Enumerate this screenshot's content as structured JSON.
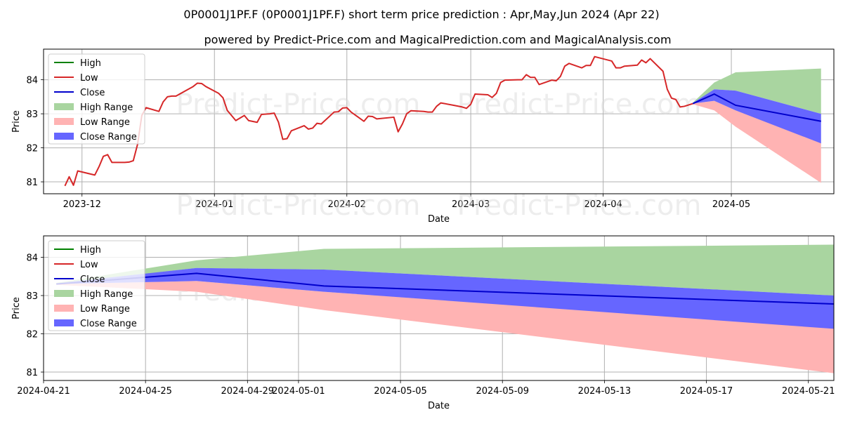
{
  "header": {
    "title": "0P0001J1PF.F (0P0001J1PF.F) short term price prediction : Apr,May,Jun 2024 (Apr 22)",
    "subtitle": "powered by Predict-Price.com and MagicalPrediction.com and MagicalAnalysis.com"
  },
  "watermark": "Predict-Price.com",
  "colors": {
    "high": "#008000",
    "low": "#d62728",
    "close": "#0000cc",
    "high_range": "#a9d5a0",
    "low_range": "#ffb3b3",
    "close_range": "#6666ff"
  },
  "chart_data": [
    {
      "type": "line",
      "xlabel": "Date",
      "ylabel": "Price",
      "xlim": [
        "2023-11-22",
        "2024-05-25"
      ],
      "ylim": [
        80.65,
        84.9
      ],
      "x_ticks": [
        "2023-12",
        "2024-01",
        "2024-02",
        "2024-03",
        "2024-04",
        "2024-05"
      ],
      "x_tick_dates": [
        "2023-12-01",
        "2024-01-01",
        "2024-02-01",
        "2024-03-01",
        "2024-04-01",
        "2024-05-01"
      ],
      "y_ticks": [
        81,
        82,
        83,
        84
      ],
      "grid": true,
      "legend_position": "top-left",
      "legend": [
        "High",
        "Low",
        "Close",
        "High Range",
        "Low Range",
        "Close Range"
      ],
      "history": {
        "name": "Low",
        "points": [
          [
            "2023-11-27",
            80.88
          ],
          [
            "2023-11-28",
            81.15
          ],
          [
            "2023-11-29",
            80.9
          ],
          [
            "2023-11-30",
            81.32
          ],
          [
            "2023-12-04",
            81.2
          ],
          [
            "2023-12-05",
            81.45
          ],
          [
            "2023-12-06",
            81.75
          ],
          [
            "2023-12-07",
            81.8
          ],
          [
            "2023-12-08",
            81.57
          ],
          [
            "2023-12-11",
            81.57
          ],
          [
            "2023-12-12",
            81.58
          ],
          [
            "2023-12-13",
            81.62
          ],
          [
            "2023-12-14",
            82.1
          ],
          [
            "2023-12-15",
            82.95
          ],
          [
            "2023-12-16",
            83.18
          ],
          [
            "2023-12-19",
            83.07
          ],
          [
            "2023-12-20",
            83.35
          ],
          [
            "2023-12-21",
            83.5
          ],
          [
            "2023-12-22",
            83.52
          ],
          [
            "2023-12-23",
            83.52
          ],
          [
            "2023-12-27",
            83.8
          ],
          [
            "2023-12-28",
            83.9
          ],
          [
            "2023-12-29",
            83.89
          ],
          [
            "2023-12-30",
            83.8
          ],
          [
            "2024-01-02",
            83.6
          ],
          [
            "2024-01-03",
            83.47
          ],
          [
            "2024-01-04",
            83.1
          ],
          [
            "2024-01-06",
            82.8
          ],
          [
            "2024-01-08",
            82.95
          ],
          [
            "2024-01-09",
            82.8
          ],
          [
            "2024-01-11",
            82.75
          ],
          [
            "2024-01-12",
            82.98
          ],
          [
            "2024-01-14",
            83.0
          ],
          [
            "2024-01-15",
            83.02
          ],
          [
            "2024-01-16",
            82.75
          ],
          [
            "2024-01-17",
            82.25
          ],
          [
            "2024-01-18",
            82.27
          ],
          [
            "2024-01-19",
            82.5
          ],
          [
            "2024-01-22",
            82.65
          ],
          [
            "2024-01-23",
            82.55
          ],
          [
            "2024-01-24",
            82.58
          ],
          [
            "2024-01-25",
            82.72
          ],
          [
            "2024-01-26",
            82.7
          ],
          [
            "2024-01-29",
            83.05
          ],
          [
            "2024-01-30",
            83.06
          ],
          [
            "2024-01-31",
            83.17
          ],
          [
            "2024-02-01",
            83.18
          ],
          [
            "2024-02-02",
            83.05
          ],
          [
            "2024-02-05",
            82.78
          ],
          [
            "2024-02-06",
            82.93
          ],
          [
            "2024-02-07",
            82.92
          ],
          [
            "2024-02-08",
            82.85
          ],
          [
            "2024-02-12",
            82.9
          ],
          [
            "2024-02-13",
            82.47
          ],
          [
            "2024-02-14",
            82.7
          ],
          [
            "2024-02-15",
            83.0
          ],
          [
            "2024-02-16",
            83.09
          ],
          [
            "2024-02-19",
            83.07
          ],
          [
            "2024-02-20",
            83.05
          ],
          [
            "2024-02-21",
            83.05
          ],
          [
            "2024-02-22",
            83.22
          ],
          [
            "2024-02-23",
            83.32
          ],
          [
            "2024-02-26",
            83.25
          ],
          [
            "2024-02-28",
            83.2
          ],
          [
            "2024-02-29",
            83.16
          ],
          [
            "2024-03-01",
            83.28
          ],
          [
            "2024-03-02",
            83.58
          ],
          [
            "2024-03-05",
            83.56
          ],
          [
            "2024-03-06",
            83.48
          ],
          [
            "2024-03-07",
            83.6
          ],
          [
            "2024-03-08",
            83.92
          ],
          [
            "2024-03-09",
            83.99
          ],
          [
            "2024-03-12",
            84.0
          ],
          [
            "2024-03-13",
            84.0
          ],
          [
            "2024-03-14",
            84.15
          ],
          [
            "2024-03-15",
            84.07
          ],
          [
            "2024-03-16",
            84.07
          ],
          [
            "2024-03-17",
            83.86
          ],
          [
            "2024-03-20",
            83.99
          ],
          [
            "2024-03-21",
            83.97
          ],
          [
            "2024-03-22",
            84.1
          ],
          [
            "2024-03-23",
            84.4
          ],
          [
            "2024-03-24",
            84.48
          ],
          [
            "2024-03-27",
            84.35
          ],
          [
            "2024-03-28",
            84.42
          ],
          [
            "2024-03-29",
            84.42
          ],
          [
            "2024-03-30",
            84.68
          ],
          [
            "2024-04-03",
            84.55
          ],
          [
            "2024-04-04",
            84.35
          ],
          [
            "2024-04-05",
            84.35
          ],
          [
            "2024-04-06",
            84.4
          ],
          [
            "2024-04-09",
            84.43
          ],
          [
            "2024-04-10",
            84.58
          ],
          [
            "2024-04-11",
            84.5
          ],
          [
            "2024-04-12",
            84.62
          ],
          [
            "2024-04-15",
            84.25
          ],
          [
            "2024-04-16",
            83.72
          ],
          [
            "2024-04-17",
            83.46
          ],
          [
            "2024-04-18",
            83.42
          ],
          [
            "2024-04-19",
            83.2
          ],
          [
            "2024-04-20",
            83.22
          ],
          [
            "2024-04-22",
            83.3
          ]
        ]
      },
      "forecast_dates": [
        "2024-04-22",
        "2024-04-27",
        "2024-05-02",
        "2024-05-22"
      ],
      "high_range": {
        "upper": [
          83.33,
          83.92,
          84.22,
          84.33
        ],
        "lower": [
          83.3,
          83.72,
          83.68,
          83.0
        ]
      },
      "low_range": {
        "upper": [
          83.3,
          83.38,
          83.1,
          82.15
        ],
        "lower": [
          83.28,
          83.1,
          82.62,
          80.97
        ]
      },
      "close_range": {
        "upper": [
          83.32,
          83.72,
          83.68,
          83.0
        ],
        "lower": [
          83.3,
          83.38,
          83.1,
          82.13
        ]
      },
      "close": [
        83.3,
        83.58,
        83.25,
        82.78
      ]
    },
    {
      "type": "area",
      "xlabel": "Date",
      "ylabel": "Price",
      "xlim": [
        "2024-04-21T00:00",
        "2024-05-22T00:00"
      ],
      "ylim": [
        80.78,
        84.56
      ],
      "x_ticks": [
        "2024-04-21",
        "2024-04-25",
        "2024-04-29",
        "2024-05-01",
        "2024-05-05",
        "2024-05-09",
        "2024-05-13",
        "2024-05-17",
        "2024-05-21"
      ],
      "y_ticks": [
        81,
        82,
        83,
        84
      ],
      "grid": true,
      "legend_position": "top-left",
      "legend": [
        "High",
        "Low",
        "Close",
        "High Range",
        "Low Range",
        "Close Range"
      ],
      "forecast_dates": [
        "2024-04-21T12:00",
        "2024-04-27",
        "2024-05-02",
        "2024-05-22"
      ],
      "high_range": {
        "upper": [
          83.33,
          83.92,
          84.22,
          84.33
        ],
        "lower": [
          83.3,
          83.72,
          83.68,
          83.0
        ]
      },
      "low_range": {
        "upper": [
          83.3,
          83.38,
          83.1,
          82.15
        ],
        "lower": [
          83.28,
          83.1,
          82.62,
          80.97
        ]
      },
      "close_range": {
        "upper": [
          83.32,
          83.72,
          83.68,
          83.0
        ],
        "lower": [
          83.3,
          83.38,
          83.1,
          82.13
        ]
      },
      "close": [
        83.3,
        83.58,
        83.25,
        82.78
      ]
    }
  ]
}
